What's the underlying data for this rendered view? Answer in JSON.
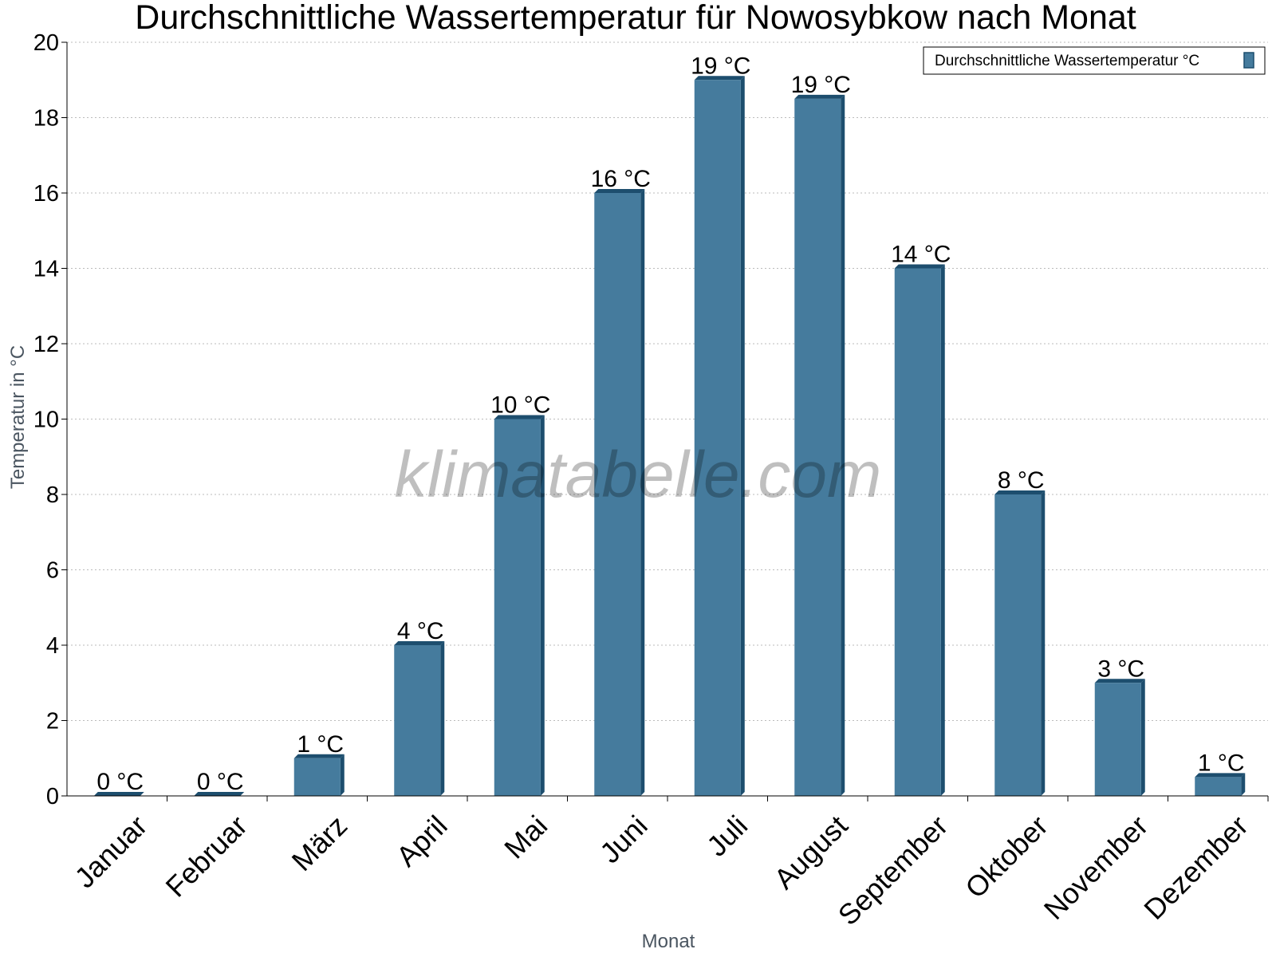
{
  "chart_data": {
    "type": "bar",
    "title": "Durchschnittliche Wassertemperatur für Nowosybkow nach Monat",
    "xlabel": "Monat",
    "ylabel": "Temperatur in °C",
    "ylim": [
      0,
      20
    ],
    "yticks": [
      0,
      2,
      4,
      6,
      8,
      10,
      12,
      14,
      16,
      18,
      20
    ],
    "grid": true,
    "legend_position": "top-right",
    "categories": [
      "Januar",
      "Februar",
      "März",
      "April",
      "Mai",
      "Juni",
      "Juli",
      "August",
      "September",
      "Oktober",
      "November",
      "Dezember"
    ],
    "series": [
      {
        "name": "Durchschnittliche Wassertemperatur °C",
        "values": [
          0,
          0,
          1,
          4,
          10,
          16,
          19,
          18.5,
          14,
          8,
          3,
          0.5
        ],
        "data_labels": [
          "0 °C",
          "0 °C",
          "1 °C",
          "4 °C",
          "10 °C",
          "16 °C",
          "19 °C",
          "19 °C",
          "14 °C",
          "8 °C",
          "3 °C",
          "1 °C"
        ],
        "color": "#457b9d",
        "edge_color": "#1d4e6e"
      }
    ],
    "watermark": "klimatabelle.com"
  }
}
